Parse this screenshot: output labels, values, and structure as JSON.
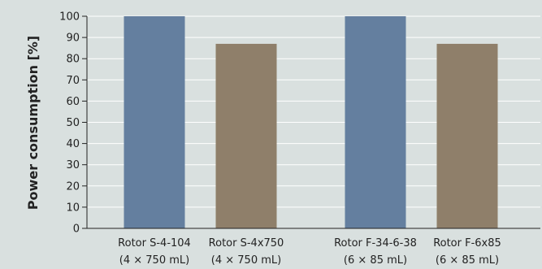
{
  "chart_data": {
    "type": "bar",
    "ylabel": "Power consumption [%]",
    "xlabel": "",
    "ylim": [
      0,
      100
    ],
    "yticks": [
      0,
      10,
      20,
      30,
      40,
      50,
      60,
      70,
      80,
      90,
      100
    ],
    "grid": true,
    "categories": [
      {
        "line1": "Rotor S-4-104",
        "line2": "(4 × 750 mL)",
        "value": 100,
        "color": "#647f9f"
      },
      {
        "line1": "Rotor S-4x750",
        "line2": "(4 × 750 mL)",
        "value": 87,
        "color": "#8f7f6a"
      },
      {
        "line1": "Rotor F-34-6-38",
        "line2": "(6 × 85 mL)",
        "value": 100,
        "color": "#647f9f"
      },
      {
        "line1": "Rotor F-6x85",
        "line2": "(6 × 85 mL)",
        "value": 87,
        "color": "#8f7f6a"
      }
    ],
    "colors": {
      "background": "#d9e0df",
      "grid": "#ffffff",
      "axis": "#222222"
    }
  }
}
